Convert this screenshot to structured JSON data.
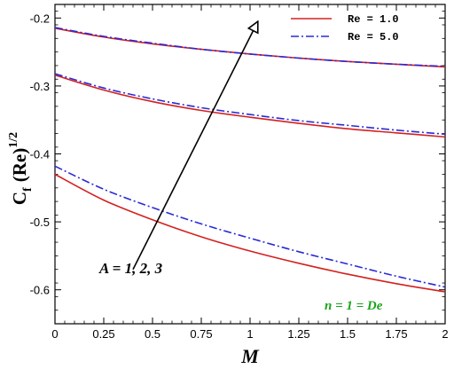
{
  "chart_data": {
    "type": "line",
    "xlabel": "M",
    "ylabel_main": "C",
    "ylabel_sub": "f",
    "ylabel_rest": "(Re)",
    "ylabel_sup": "1/2",
    "xlim": [
      0,
      2
    ],
    "ylim": [
      -0.65,
      -0.18
    ],
    "xticks": [
      0,
      0.25,
      0.5,
      0.75,
      1,
      1.25,
      1.5,
      1.75,
      2
    ],
    "xtick_labels": [
      "0",
      "0.25",
      "0.5",
      "0.75",
      "1",
      "1.25",
      "1.5",
      "1.75",
      "2"
    ],
    "yticks": [
      -0.6,
      -0.5,
      -0.4,
      -0.3,
      -0.2
    ],
    "ytick_labels": [
      "-0.6",
      "-0.5",
      "-0.4",
      "-0.3",
      "-0.2"
    ],
    "grid": false,
    "legend_position": "top-right",
    "legend": [
      {
        "label": "Re = 1.0",
        "color": "#d42020",
        "style": "solid"
      },
      {
        "label": "Re = 5.0",
        "color": "#2a2ad8",
        "style": "dashdot"
      }
    ],
    "x": [
      0,
      0.25,
      0.5,
      0.75,
      1,
      1.25,
      1.5,
      1.75,
      2
    ],
    "series": [
      {
        "group": "A = 1",
        "re": "Re = 1.0",
        "color": "#d42020",
        "style": "solid",
        "values": [
          -0.43,
          -0.468,
          -0.497,
          -0.522,
          -0.543,
          -0.561,
          -0.577,
          -0.591,
          -0.603
        ]
      },
      {
        "group": "A = 1",
        "re": "Re = 5.0",
        "color": "#2a2ad8",
        "style": "dashdot",
        "values": [
          -0.418,
          -0.452,
          -0.479,
          -0.503,
          -0.524,
          -0.544,
          -0.562,
          -0.58,
          -0.596
        ]
      },
      {
        "group": "A = 2",
        "re": "Re = 1.0",
        "color": "#d42020",
        "style": "solid",
        "values": [
          -0.284,
          -0.306,
          -0.323,
          -0.336,
          -0.346,
          -0.355,
          -0.363,
          -0.369,
          -0.375
        ]
      },
      {
        "group": "A = 2",
        "re": "Re = 5.0",
        "color": "#2a2ad8",
        "style": "dashdot",
        "values": [
          -0.282,
          -0.303,
          -0.319,
          -0.332,
          -0.342,
          -0.351,
          -0.358,
          -0.365,
          -0.371
        ]
      },
      {
        "group": "A = 3",
        "re": "Re = 1.0",
        "color": "#d42020",
        "style": "solid",
        "values": [
          -0.215,
          -0.228,
          -0.238,
          -0.246,
          -0.253,
          -0.259,
          -0.264,
          -0.268,
          -0.272
        ]
      },
      {
        "group": "A = 3",
        "re": "Re = 5.0",
        "color": "#2a2ad8",
        "style": "dashdot",
        "values": [
          -0.214,
          -0.227,
          -0.237,
          -0.246,
          -0.253,
          -0.259,
          -0.264,
          -0.268,
          -0.271
        ]
      }
    ],
    "annotations": {
      "arrow_label": "A = 1, 2, 3",
      "params_label": "n = 1 = De",
      "arrow_from": [
        0.4,
        -0.57
      ],
      "arrow_to": [
        1.04,
        -0.205
      ]
    }
  }
}
